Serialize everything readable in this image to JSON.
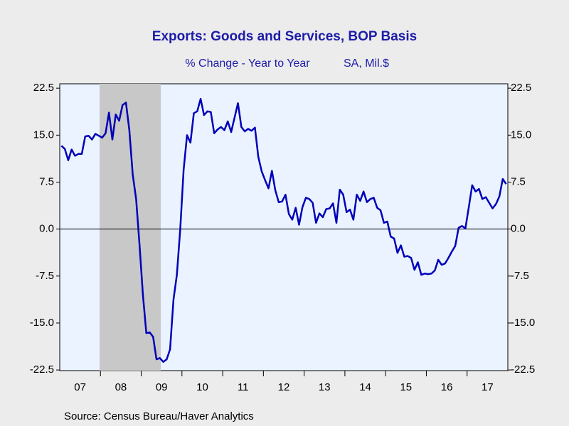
{
  "chart_data": {
    "type": "line",
    "title": "Exports: Goods and Services, BOP Basis",
    "subtitle": "% Change - Year to Year",
    "units": "SA, Mil.$",
    "source": "Source:  Census Bureau/Haver Analytics",
    "categories": [
      null,
      null,
      null,
      null,
      null,
      null,
      "07",
      null,
      null,
      null,
      null,
      null,
      null,
      null,
      null,
      null,
      null,
      null,
      "08",
      null,
      null,
      null,
      null,
      null,
      null,
      null,
      null,
      null,
      null,
      null,
      "09",
      null,
      null,
      null,
      null,
      null,
      null,
      null,
      null,
      null,
      null,
      null,
      "10",
      null,
      null,
      null,
      null,
      null,
      null,
      null,
      null,
      null,
      null,
      null,
      "11",
      null,
      null,
      null,
      null,
      null,
      null,
      null,
      null,
      null,
      null,
      null,
      "12",
      null,
      null,
      null,
      null,
      null,
      null,
      null,
      null,
      null,
      null,
      null,
      "13",
      null,
      null,
      null,
      null,
      null,
      null,
      null,
      null,
      null,
      null,
      null,
      "14",
      null,
      null,
      null,
      null,
      null,
      null,
      null,
      null,
      null,
      null,
      null,
      "15",
      null,
      null,
      null,
      null,
      null,
      null,
      null,
      null,
      null,
      null,
      null,
      "16",
      null,
      null,
      null,
      null,
      null,
      null,
      null,
      null,
      null,
      null,
      null,
      "17",
      null,
      null,
      null,
      null,
      null
    ],
    "series": [
      {
        "name": "Exports",
        "color": "#0000b8",
        "values": [
          13.3,
          12.8,
          11.0,
          12.7,
          11.7,
          12.0,
          12.0,
          14.8,
          14.9,
          14.3,
          15.2,
          14.9,
          14.6,
          15.3,
          18.6,
          14.3,
          18.3,
          17.3,
          19.8,
          20.2,
          15.8,
          8.7,
          4.8,
          -2.5,
          -10.5,
          -16.6,
          -16.5,
          -17.2,
          -20.8,
          -20.6,
          -21.2,
          -20.8,
          -19.2,
          -11.3,
          -7.3,
          0.0,
          9.5,
          15.0,
          13.8,
          18.5,
          18.8,
          20.8,
          18.2,
          18.8,
          18.7,
          15.3,
          15.9,
          16.3,
          15.8,
          17.2,
          15.5,
          17.8,
          20.1,
          16.3,
          15.6,
          16.0,
          15.7,
          16.2,
          11.5,
          9.2,
          7.8,
          6.5,
          9.3,
          6.2,
          4.3,
          4.4,
          5.5,
          2.4,
          1.5,
          3.4,
          0.7,
          3.5,
          5.0,
          4.8,
          4.2,
          1.0,
          2.5,
          1.9,
          3.2,
          3.3,
          4.1,
          1.0,
          6.3,
          5.5,
          2.7,
          3.1,
          1.5,
          5.5,
          4.5,
          6.0,
          4.3,
          4.8,
          5.0,
          3.4,
          3.0,
          1.0,
          1.2,
          -1.2,
          -1.5,
          -3.8,
          -2.6,
          -4.4,
          -4.3,
          -4.6,
          -6.5,
          -5.3,
          -7.3,
          -7.1,
          -7.2,
          -7.1,
          -6.6,
          -4.9,
          -5.7,
          -5.5,
          -4.6,
          -3.6,
          -2.7,
          0.2,
          0.5,
          0.1,
          3.5,
          7.0,
          6.0,
          6.4,
          4.8,
          5.1,
          4.2,
          3.3,
          4.0,
          5.2,
          8.0,
          7.2
        ]
      }
    ],
    "ylim": [
      -22.6,
      23.2
    ],
    "yticks": [
      -22.5,
      {
        "value": -15,
        "label": "-15.0"
      },
      -7.5,
      {
        "value": 0,
        "label": "0.0"
      },
      7.5,
      {
        "value": 15,
        "label": "15.0"
      },
      22.5
    ]
  }
}
